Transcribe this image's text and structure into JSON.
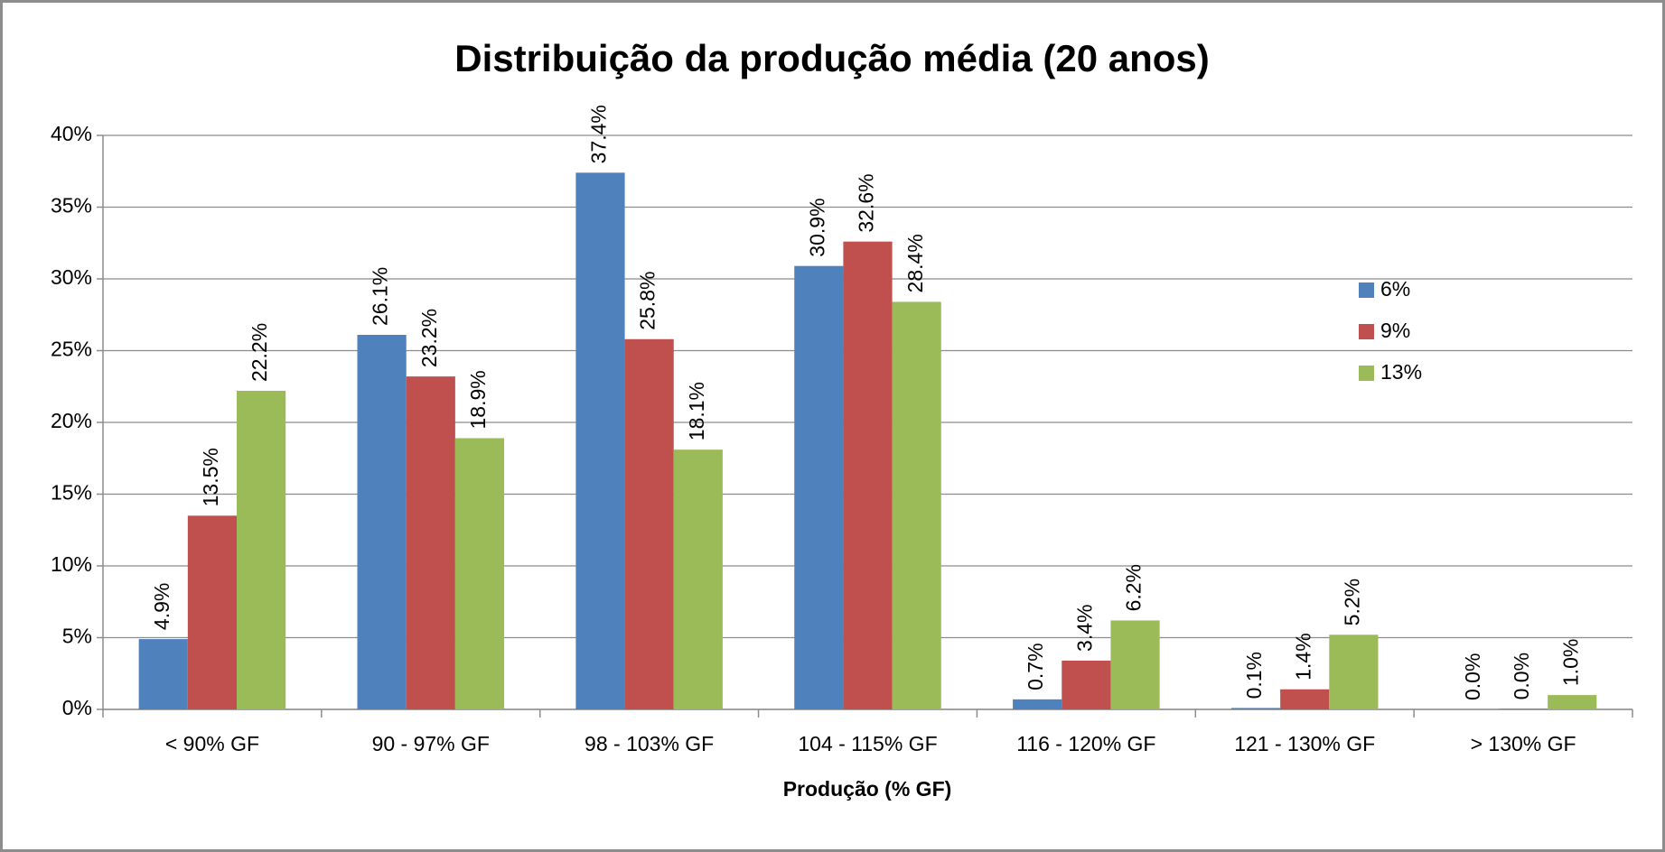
{
  "chart_data": {
    "type": "bar",
    "title": "Distribuição da produção média (20 anos)",
    "x_label": "Produção (% GF)",
    "categories": [
      "< 90% GF",
      "90 - 97% GF",
      "98 - 103% GF",
      "104 - 115% GF",
      "116 - 120% GF",
      "121 - 130% GF",
      "> 130% GF"
    ],
    "series": [
      {
        "name": "6%",
        "color": "#4f81bd",
        "values": [
          4.9,
          26.1,
          37.4,
          30.9,
          0.7,
          0.1,
          0.0
        ],
        "value_labels": [
          "4.9%",
          "26.1%",
          "37.4%",
          "30.9%",
          "0.7%",
          "0.1%",
          "0.0%"
        ]
      },
      {
        "name": "9%",
        "color": "#c0504d",
        "values": [
          13.5,
          23.2,
          25.8,
          32.6,
          3.4,
          1.4,
          0.04
        ],
        "value_labels": [
          "13.5%",
          "23.2%",
          "25.8%",
          "32.6%",
          "3.4%",
          "1.4%",
          "0.0%"
        ]
      },
      {
        "name": "13%",
        "color": "#9bbb59",
        "values": [
          22.2,
          18.9,
          18.1,
          28.4,
          6.2,
          5.2,
          1.0
        ],
        "value_labels": [
          "22.2%",
          "18.9%",
          "18.1%",
          "28.4%",
          "6.2%",
          "5.2%",
          "1.0%"
        ]
      }
    ],
    "ylim": [
      0,
      40
    ],
    "yticks": [
      {
        "value": 0,
        "label": "0%"
      },
      {
        "value": 5,
        "label": "5%"
      },
      {
        "value": 10,
        "label": "10%"
      },
      {
        "value": 15,
        "label": "15%"
      },
      {
        "value": 20,
        "label": "20%"
      },
      {
        "value": 25,
        "label": "25%"
      },
      {
        "value": 30,
        "label": "30%"
      },
      {
        "value": 35,
        "label": "35%"
      },
      {
        "value": 40,
        "label": "40%"
      }
    ],
    "grid": true,
    "legend": "right"
  }
}
